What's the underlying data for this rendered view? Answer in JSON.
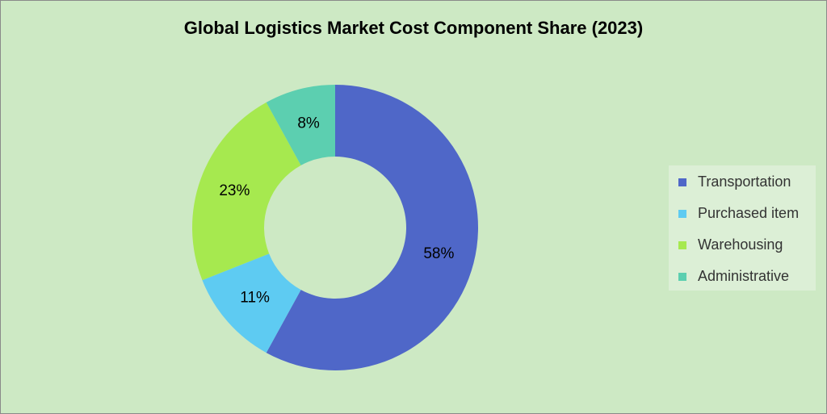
{
  "chart_data": {
    "type": "donut",
    "title": "Global Logistics Market Cost Component Share (2023)",
    "categories": [
      "Transportation",
      "Purchased item",
      "Warehousing",
      "Administrative"
    ],
    "values": [
      58,
      11,
      23,
      8
    ],
    "value_labels": [
      "58%",
      "11%",
      "23%",
      "8%"
    ],
    "colors": [
      "#4f67c8",
      "#5ecbf2",
      "#a6e94f",
      "#5ccfb0"
    ],
    "legend": "right"
  }
}
